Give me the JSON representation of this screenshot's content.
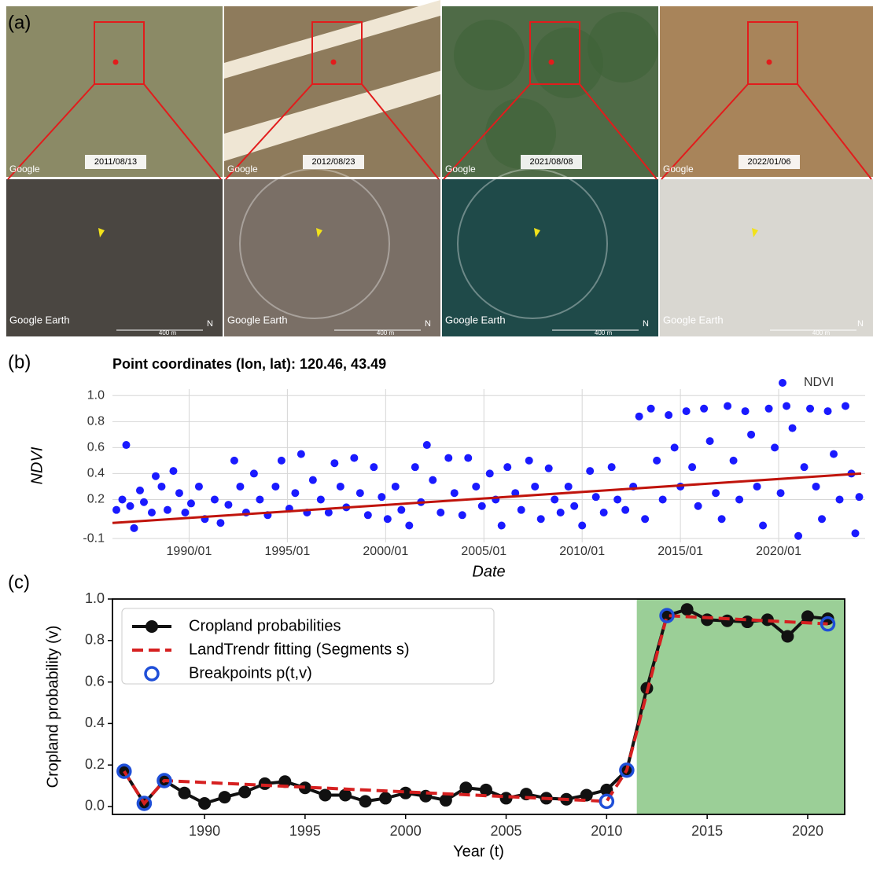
{
  "panels": {
    "a": "(a)",
    "b": "(b)",
    "c": "(c)"
  },
  "imagery": {
    "dates": [
      "2011/08/13",
      "2012/08/23",
      "2021/08/08",
      "2022/01/06"
    ],
    "watermark_top": "Google",
    "watermark_bottom": "Google Earth",
    "scale_bottom": "400 m",
    "north": "N"
  },
  "chart_data": [
    {
      "type": "scatter",
      "title": "Point coordinates (lon, lat): 120.46, 43.49",
      "x_label": "Date",
      "y_label": "NDVI",
      "xlim": [
        1986.1,
        2024.4
      ],
      "ylim": [
        -0.13,
        1.05
      ],
      "xticks": [
        {
          "value": 1990,
          "label": "1990/01"
        },
        {
          "value": 1995,
          "label": "1995/01"
        },
        {
          "value": 2000,
          "label": "2000/01"
        },
        {
          "value": 2005,
          "label": "2005/01"
        },
        {
          "value": 2010,
          "label": "2010/01"
        },
        {
          "value": 2015,
          "label": "2015/01"
        },
        {
          "value": 2020,
          "label": "2020/01"
        }
      ],
      "yticks": [
        -0.1,
        0.2,
        0.4,
        0.6,
        0.8,
        {
          "value": 1.0,
          "label": "1.0"
        }
      ],
      "grid": true,
      "legend": "upper right",
      "series": [
        {
          "name": "NDVI",
          "color": "#1a1aff",
          "mode": "dots",
          "x": [
            1986.3,
            1986.6,
            1986.8,
            1987.0,
            1987.2,
            1987.5,
            1987.7,
            1988.1,
            1988.3,
            1988.6,
            1988.9,
            1989.2,
            1989.5,
            1989.8,
            1990.1,
            1990.5,
            1990.8,
            1991.3,
            1991.6,
            1992.0,
            1992.3,
            1992.6,
            1992.9,
            1993.3,
            1993.6,
            1994.0,
            1994.4,
            1994.7,
            1995.1,
            1995.4,
            1995.7,
            1996.0,
            1996.3,
            1996.7,
            1997.1,
            1997.4,
            1997.7,
            1998.0,
            1998.4,
            1998.7,
            1999.1,
            1999.4,
            1999.8,
            2000.1,
            2000.5,
            2000.8,
            2001.2,
            2001.5,
            2001.8,
            2002.1,
            2002.4,
            2002.8,
            2003.2,
            2003.5,
            2003.9,
            2004.2,
            2004.6,
            2004.9,
            2005.3,
            2005.6,
            2005.9,
            2006.2,
            2006.6,
            2006.9,
            2007.3,
            2007.6,
            2007.9,
            2008.3,
            2008.6,
            2008.9,
            2009.3,
            2009.6,
            2010.0,
            2010.4,
            2010.7,
            2011.1,
            2011.5,
            2011.8,
            2012.2,
            2012.6,
            2012.9,
            2013.2,
            2013.5,
            2013.8,
            2014.1,
            2014.4,
            2014.7,
            2015.0,
            2015.3,
            2015.6,
            2015.9,
            2016.2,
            2016.5,
            2016.8,
            2017.1,
            2017.4,
            2017.7,
            2018.0,
            2018.3,
            2018.6,
            2018.9,
            2019.2,
            2019.5,
            2019.8,
            2020.1,
            2020.4,
            2020.7,
            2021.0,
            2021.3,
            2021.6,
            2021.9,
            2022.2,
            2022.5,
            2022.8,
            2023.1,
            2023.4,
            2023.7,
            2023.9,
            2024.1
          ],
          "values": [
            0.12,
            0.2,
            0.62,
            0.15,
            -0.02,
            0.27,
            0.18,
            0.1,
            0.38,
            0.3,
            0.12,
            0.42,
            0.25,
            0.1,
            0.17,
            0.3,
            0.05,
            0.2,
            0.02,
            0.16,
            0.5,
            0.3,
            0.1,
            0.4,
            0.2,
            0.08,
            0.3,
            0.5,
            0.13,
            0.25,
            0.55,
            0.1,
            0.35,
            0.2,
            0.1,
            0.48,
            0.3,
            0.14,
            0.52,
            0.25,
            0.08,
            0.45,
            0.22,
            0.05,
            0.3,
            0.12,
            0.0,
            0.45,
            0.18,
            0.62,
            0.35,
            0.1,
            0.52,
            0.25,
            0.08,
            0.52,
            0.3,
            0.15,
            0.4,
            0.2,
            0.0,
            0.45,
            0.25,
            0.12,
            0.5,
            0.3,
            0.05,
            0.44,
            0.2,
            0.1,
            0.3,
            0.15,
            0.0,
            0.42,
            0.22,
            0.1,
            0.45,
            0.2,
            0.12,
            0.3,
            0.84,
            0.05,
            0.9,
            0.5,
            0.2,
            0.85,
            0.6,
            0.3,
            0.88,
            0.45,
            0.15,
            0.9,
            0.65,
            0.25,
            0.05,
            0.92,
            0.5,
            0.2,
            0.88,
            0.7,
            0.3,
            0.0,
            0.9,
            0.6,
            0.25,
            0.92,
            0.75,
            -0.08,
            0.45,
            0.9,
            0.3,
            0.05,
            0.88,
            0.55,
            0.2,
            0.92,
            0.4,
            -0.06,
            0.22
          ]
        },
        {
          "color": "#c0140c",
          "mode": "line",
          "x": [
            1986.1,
            2024.2
          ],
          "values": [
            0.02,
            0.4
          ]
        }
      ]
    },
    {
      "type": "line",
      "x_label": "Year (t)",
      "y_label": "Cropland probability (v)",
      "xlim": [
        1985.42,
        2021.84
      ],
      "ylim": [
        -0.038,
        1.0
      ],
      "xticks": [
        1990,
        1995,
        2000,
        2005,
        2010,
        2015,
        2020
      ],
      "yticks": [
        {
          "value": 0,
          "label": "0.0"
        },
        0.2,
        0.4,
        0.6,
        0.8,
        {
          "value": 1,
          "label": "1.0"
        }
      ],
      "grid": false,
      "legend": "upper left",
      "shade": {
        "from": 2011.5,
        "to": 2021.84,
        "color": "#9bcf97"
      },
      "series": [
        {
          "name": "Cropland probabilities",
          "color": "#111111",
          "mode": "line-dots",
          "x": [
            1986,
            1987,
            1988,
            1989,
            1990,
            1991,
            1992,
            1993,
            1994,
            1995,
            1996,
            1997,
            1998,
            1999,
            2000,
            2001,
            2002,
            2003,
            2004,
            2005,
            2006,
            2007,
            2008,
            2009,
            2010,
            2011,
            2012,
            2013,
            2014,
            2015,
            2016,
            2017,
            2018,
            2019,
            2020,
            2021
          ],
          "values": [
            0.17,
            0.015,
            0.125,
            0.065,
            0.015,
            0.045,
            0.07,
            0.11,
            0.12,
            0.09,
            0.055,
            0.055,
            0.025,
            0.04,
            0.065,
            0.05,
            0.03,
            0.09,
            0.08,
            0.04,
            0.06,
            0.04,
            0.035,
            0.055,
            0.08,
            0.175,
            0.57,
            0.92,
            0.95,
            0.9,
            0.895,
            0.89,
            0.9,
            0.82,
            0.915,
            0.905
          ]
        },
        {
          "name": "LandTrendr fitting (Segments s)",
          "color": "#d62020",
          "mode": "dashed",
          "x": [
            1986,
            1987,
            1988,
            2010,
            2011,
            2013,
            2021
          ],
          "values": [
            0.17,
            0.015,
            0.125,
            0.025,
            0.175,
            0.92,
            0.88
          ]
        },
        {
          "name": "Breakpoints p(t,v)",
          "color": "#1f4fd8",
          "mode": "rings",
          "x": [
            1986,
            1987,
            1988,
            2010,
            2011,
            2013,
            2021
          ],
          "values": [
            0.17,
            0.015,
            0.125,
            0.025,
            0.175,
            0.92,
            0.88
          ]
        }
      ]
    }
  ]
}
